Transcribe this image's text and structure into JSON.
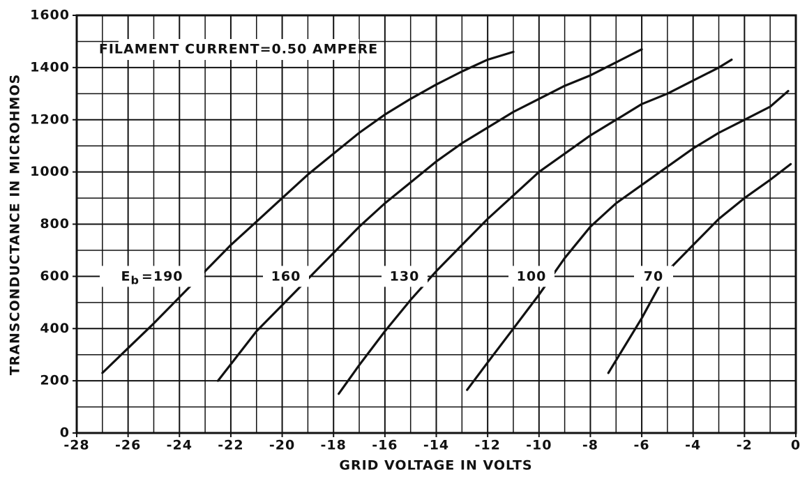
{
  "chart_data": {
    "type": "line",
    "annotation": "FILAMENT CURRENT=0.50 AMPERE",
    "x_label": "GRID VOLTAGE IN VOLTS",
    "y_label": "TRANSCONDUCTANCE IN MICROHMOS",
    "curve_label_prefix": {
      "symbol": "E",
      "subscript": "b",
      "equals": "="
    },
    "xlim": [
      -28,
      0
    ],
    "ylim": [
      0,
      1600
    ],
    "xticks": [
      -28,
      -26,
      -24,
      -22,
      -20,
      -18,
      -16,
      -14,
      -12,
      -10,
      -8,
      -6,
      -4,
      -2,
      0
    ],
    "yticks": [
      0,
      200,
      400,
      600,
      800,
      1000,
      1200,
      1400,
      1600
    ],
    "grid": true,
    "color": "#111111",
    "series": [
      {
        "name": "190",
        "color": "#111111",
        "x": [
          -27,
          -26,
          -25,
          -24,
          -23,
          -22,
          -21,
          -20,
          -19,
          -18,
          -17,
          -16,
          -15,
          -14,
          -13,
          -12,
          -11
        ],
        "values": [
          230,
          325,
          420,
          520,
          620,
          720,
          810,
          900,
          990,
          1070,
          1150,
          1220,
          1280,
          1335,
          1385,
          1430,
          1460
        ]
      },
      {
        "name": "160",
        "color": "#111111",
        "x": [
          -22.5,
          -21,
          -20,
          -19,
          -18,
          -17,
          -16,
          -15,
          -14,
          -13,
          -12,
          -11,
          -10,
          -9,
          -8,
          -7,
          -6
        ],
        "values": [
          200,
          390,
          490,
          590,
          690,
          790,
          880,
          960,
          1040,
          1110,
          1170,
          1230,
          1280,
          1330,
          1370,
          1420,
          1470
        ]
      },
      {
        "name": "130",
        "color": "#111111",
        "x": [
          -17.8,
          -17,
          -16,
          -15,
          -14,
          -13,
          -12,
          -11,
          -10,
          -9,
          -8,
          -7,
          -6,
          -5,
          -4,
          -3,
          -2.5
        ],
        "values": [
          150,
          260,
          390,
          510,
          620,
          720,
          820,
          910,
          1000,
          1070,
          1140,
          1200,
          1260,
          1300,
          1350,
          1400,
          1430
        ]
      },
      {
        "name": "100",
        "color": "#111111",
        "x": [
          -12.8,
          -12,
          -11,
          -10,
          -9,
          -8,
          -7,
          -6,
          -5,
          -4,
          -3,
          -2,
          -1,
          -0.3
        ],
        "values": [
          165,
          270,
          400,
          530,
          670,
          790,
          880,
          950,
          1020,
          1090,
          1150,
          1200,
          1250,
          1310
        ]
      },
      {
        "name": "70",
        "color": "#111111",
        "x": [
          -7.3,
          -6,
          -5,
          -4,
          -3,
          -2,
          -1,
          -0.2
        ],
        "values": [
          230,
          440,
          620,
          720,
          820,
          900,
          970,
          1030
        ]
      }
    ]
  }
}
